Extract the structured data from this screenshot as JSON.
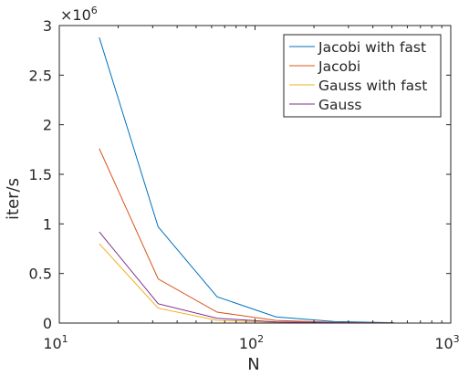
{
  "chart_data": {
    "type": "line",
    "xscale": "log",
    "xlabel": "N",
    "ylabel": "iter/s",
    "xlim": [
      10,
      1000
    ],
    "ylim": [
      0,
      3000000
    ],
    "y_exponent_label": "×10",
    "y_exponent_power": "6",
    "xticks": [
      {
        "value": 10,
        "base": "10",
        "power": "1"
      },
      {
        "value": 100,
        "base": "10",
        "power": "2"
      },
      {
        "value": 1000,
        "base": "10",
        "power": "3"
      }
    ],
    "yticks": [
      {
        "value": 0,
        "label": "0"
      },
      {
        "value": 500000,
        "label": "0.5"
      },
      {
        "value": 1000000,
        "label": "1"
      },
      {
        "value": 1500000,
        "label": "1.5"
      },
      {
        "value": 2000000,
        "label": "2"
      },
      {
        "value": 2500000,
        "label": "2.5"
      },
      {
        "value": 3000000,
        "label": "3"
      }
    ],
    "x": [
      16,
      32,
      64,
      128,
      256,
      512,
      1024
    ],
    "grid": false,
    "legend_position": "top-right",
    "series": [
      {
        "name": "Jacobi with fast",
        "color": "#0072BD",
        "values": [
          2880000,
          970000,
          265000,
          62000,
          15000,
          3800,
          900
        ]
      },
      {
        "name": "Jacobi",
        "color": "#D95319",
        "values": [
          1760000,
          445000,
          110000,
          27000,
          7000,
          1700,
          400
        ]
      },
      {
        "name": "Gauss with fast",
        "color": "#EDB120",
        "values": [
          800000,
          150000,
          28000,
          6500,
          1600,
          400,
          100
        ]
      },
      {
        "name": "Gauss",
        "color": "#7E2F8E",
        "values": [
          920000,
          195000,
          48000,
          12000,
          3000,
          750,
          180
        ]
      }
    ]
  }
}
